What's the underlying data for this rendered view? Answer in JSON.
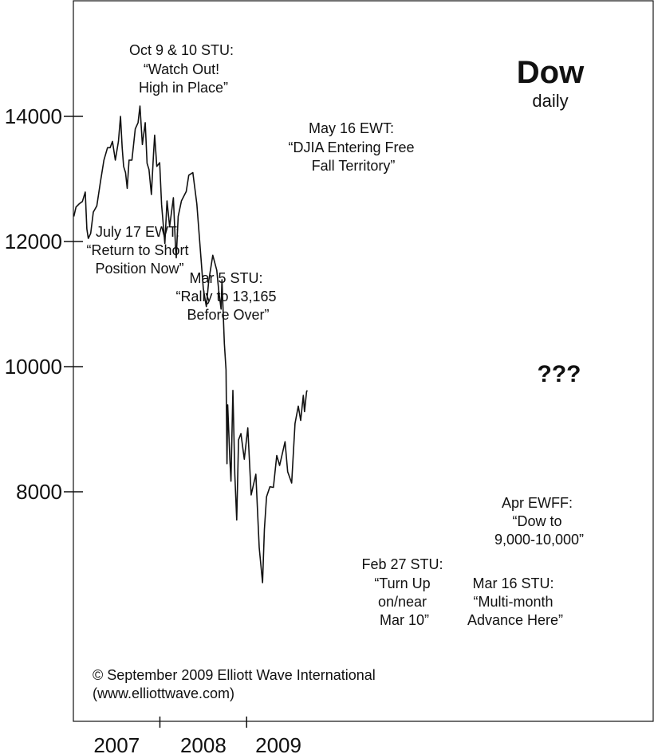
{
  "chart_data": {
    "type": "line",
    "title": "Dow",
    "subtitle": "daily",
    "xlabel": "",
    "ylabel": "",
    "yticks": [
      8000,
      10000,
      12000,
      14000
    ],
    "years": [
      "2007",
      "2008",
      "2009"
    ],
    "grid": false,
    "series": [
      {
        "points": [
          [
            "2007-01-03",
            12400
          ],
          [
            "2007-01-12",
            12550
          ],
          [
            "2007-01-25",
            12600
          ],
          [
            "2007-02-08",
            12640
          ],
          [
            "2007-02-20",
            12790
          ],
          [
            "2007-02-27",
            12200
          ],
          [
            "2007-03-05",
            12050
          ],
          [
            "2007-03-15",
            12130
          ],
          [
            "2007-03-26",
            12470
          ],
          [
            "2007-04-10",
            12570
          ],
          [
            "2007-04-25",
            12950
          ],
          [
            "2007-05-10",
            13300
          ],
          [
            "2007-05-25",
            13500
          ],
          [
            "2007-06-05",
            13500
          ],
          [
            "2007-06-15",
            13600
          ],
          [
            "2007-06-27",
            13300
          ],
          [
            "2007-07-10",
            13600
          ],
          [
            "2007-07-19",
            14000
          ],
          [
            "2007-07-26",
            13500
          ],
          [
            "2007-08-01",
            13200
          ],
          [
            "2007-08-09",
            13100
          ],
          [
            "2007-08-16",
            12850
          ],
          [
            "2007-08-24",
            13300
          ],
          [
            "2007-09-05",
            13300
          ],
          [
            "2007-09-19",
            13800
          ],
          [
            "2007-10-01",
            13900
          ],
          [
            "2007-10-09",
            14164
          ],
          [
            "2007-10-19",
            13550
          ],
          [
            "2007-10-31",
            13900
          ],
          [
            "2007-11-08",
            13250
          ],
          [
            "2007-11-16",
            13150
          ],
          [
            "2007-11-26",
            12750
          ],
          [
            "2007-12-05",
            13400
          ],
          [
            "2007-12-10",
            13700
          ],
          [
            "2007-12-19",
            13200
          ],
          [
            "2007-12-31",
            13260
          ],
          [
            "2008-01-08",
            12590
          ],
          [
            "2008-01-22",
            11970
          ],
          [
            "2008-01-31",
            12650
          ],
          [
            "2008-02-11",
            12240
          ],
          [
            "2008-02-27",
            12700
          ],
          [
            "2008-03-07",
            11900
          ],
          [
            "2008-03-10",
            11740
          ],
          [
            "2008-03-18",
            12400
          ],
          [
            "2008-04-01",
            12650
          ],
          [
            "2008-04-21",
            12800
          ],
          [
            "2008-05-02",
            13060
          ],
          [
            "2008-05-19",
            13100
          ],
          [
            "2008-06-05",
            12600
          ],
          [
            "2008-06-20",
            11850
          ],
          [
            "2008-07-02",
            11250
          ],
          [
            "2008-07-15",
            10960
          ],
          [
            "2008-07-25",
            11370
          ],
          [
            "2008-08-11",
            11780
          ],
          [
            "2008-08-28",
            11540
          ],
          [
            "2008-09-05",
            11220
          ],
          [
            "2008-09-15",
            10920
          ],
          [
            "2008-09-19",
            11390
          ],
          [
            "2008-09-29",
            10370
          ],
          [
            "2008-10-06",
            9950
          ],
          [
            "2008-10-10",
            8450
          ],
          [
            "2008-10-13",
            9390
          ],
          [
            "2008-10-22",
            8520
          ],
          [
            "2008-10-27",
            8170
          ],
          [
            "2008-11-04",
            9620
          ],
          [
            "2008-11-12",
            8280
          ],
          [
            "2008-11-20",
            7550
          ],
          [
            "2008-11-28",
            8830
          ],
          [
            "2008-12-08",
            8930
          ],
          [
            "2008-12-22",
            8520
          ],
          [
            "2009-01-06",
            9020
          ],
          [
            "2009-01-20",
            7950
          ],
          [
            "2009-02-09",
            8280
          ],
          [
            "2009-02-23",
            7110
          ],
          [
            "2009-03-09",
            6547
          ],
          [
            "2009-03-17",
            7400
          ],
          [
            "2009-03-26",
            7920
          ],
          [
            "2009-04-09",
            8080
          ],
          [
            "2009-04-24",
            8070
          ],
          [
            "2009-05-08",
            8580
          ],
          [
            "2009-05-20",
            8420
          ],
          [
            "2009-06-12",
            8800
          ],
          [
            "2009-06-23",
            8320
          ],
          [
            "2009-07-10",
            8140
          ],
          [
            "2009-07-24",
            9090
          ],
          [
            "2009-08-07",
            9370
          ],
          [
            "2009-08-17",
            9140
          ],
          [
            "2009-08-28",
            9540
          ],
          [
            "2009-09-02",
            9280
          ],
          [
            "2009-09-11",
            9600
          ],
          [
            "2009-09-14",
            9620
          ]
        ]
      }
    ],
    "annotations": [
      {
        "lines": [
          "Oct 9 & 10 STU:",
          "“Watch Out!",
          "High in Place”"
        ]
      },
      {
        "lines": [
          "May 16 EWT:",
          "“DJIA Entering Free",
          "Fall Territory”"
        ]
      },
      {
        "lines": [
          "July 17 EWT:",
          "“Return to Short",
          "Position Now”"
        ]
      },
      {
        "lines": [
          "Mar 5 STU:",
          "“Rally to 13,165",
          "Before Over”"
        ]
      },
      {
        "lines": [
          "Apr EWFF:",
          "“Dow to",
          "9,000-10,000”"
        ]
      },
      {
        "lines": [
          "Feb 27 STU:",
          "“Turn Up",
          "on/near",
          "Mar 10”"
        ]
      },
      {
        "lines": [
          "Mar 16 STU:",
          "“Multi-month",
          "Advance Here”"
        ]
      }
    ],
    "marker": "???",
    "copyright": [
      "© September 2009 Elliott Wave International",
      "(www.elliottwave.com)"
    ]
  }
}
